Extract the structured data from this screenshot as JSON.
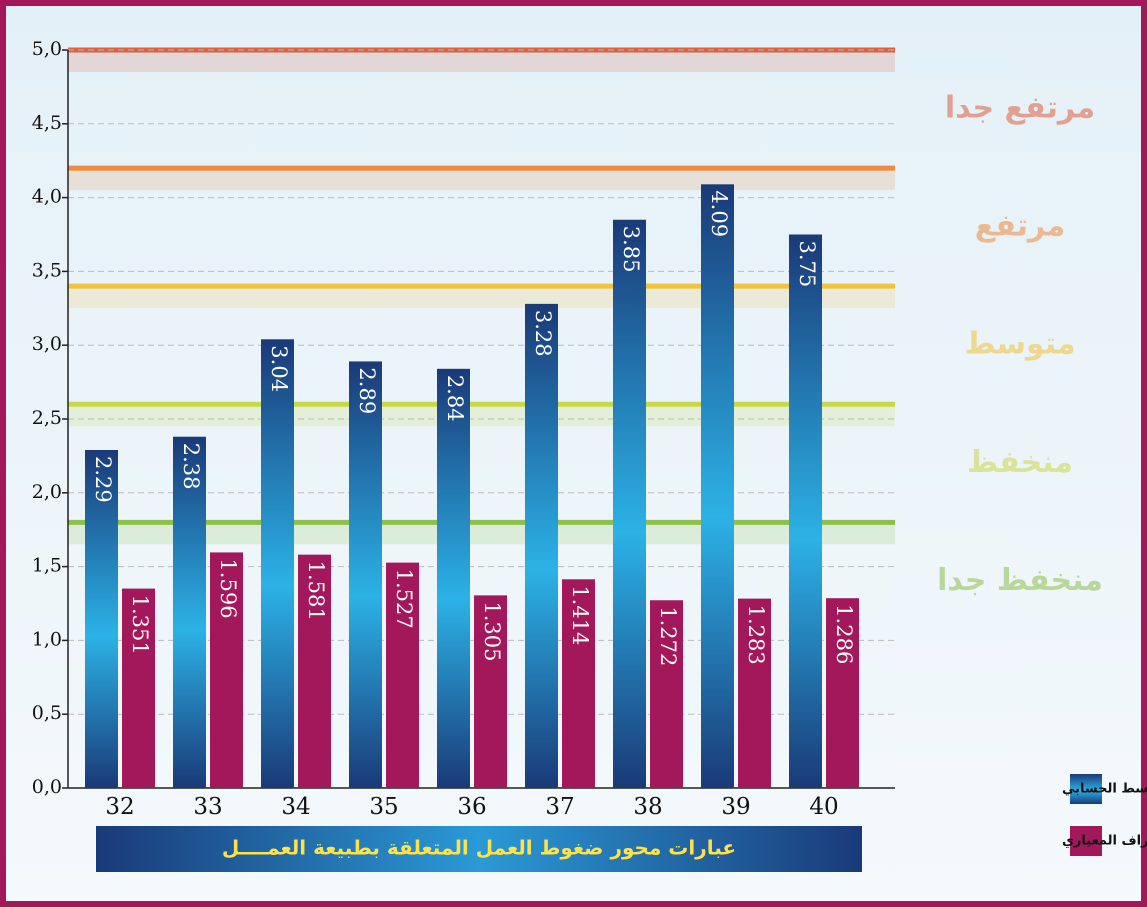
{
  "chart_data": {
    "type": "bar",
    "categories": [
      "32",
      "33",
      "34",
      "35",
      "36",
      "37",
      "38",
      "39",
      "40"
    ],
    "series": [
      {
        "name": "المتوسط الحسابي",
        "color": "#1e4a8a",
        "values": [
          2.29,
          2.38,
          3.04,
          2.89,
          2.84,
          3.28,
          3.85,
          4.09,
          3.75
        ]
      },
      {
        "name": "الإنحراف المعياري",
        "color": "#a3185a",
        "values": [
          1.351,
          1.596,
          1.581,
          1.527,
          1.305,
          1.414,
          1.272,
          1.283,
          1.286
        ]
      }
    ],
    "ylim": [
      0,
      5
    ],
    "yticks": [
      {
        "value": 0,
        "label": "0,0"
      },
      {
        "value": 0.5,
        "label": "0,5"
      },
      {
        "value": 1,
        "label": "1,0"
      },
      {
        "value": 1.5,
        "label": "1,5"
      },
      {
        "value": 2,
        "label": "2,0"
      },
      {
        "value": 2.5,
        "label": "2,5"
      },
      {
        "value": 3,
        "label": "3,0"
      },
      {
        "value": 3.5,
        "label": "3,5"
      },
      {
        "value": 4,
        "label": "4,0"
      },
      {
        "value": 4.5,
        "label": "4,5"
      },
      {
        "value": 5,
        "label": "5,0"
      }
    ],
    "grid": true,
    "levels": [
      {
        "label": "منخفظ جدا",
        "upper": 1.8,
        "color": "#8cc04a"
      },
      {
        "label": "منخفظ",
        "upper": 2.6,
        "color": "#c9d84a"
      },
      {
        "label": "متوسط",
        "upper": 3.4,
        "color": "#f2c23c"
      },
      {
        "label": "مرتفع",
        "upper": 4.2,
        "color": "#f08a3c"
      },
      {
        "label": "مرتفع جدا",
        "upper": 5,
        "color": "#e0603c"
      }
    ],
    "xlabel": "عبارات محور ضغوط العمل المتعلقة بطبيعة العمــــل",
    "legend": "bottom-right"
  }
}
